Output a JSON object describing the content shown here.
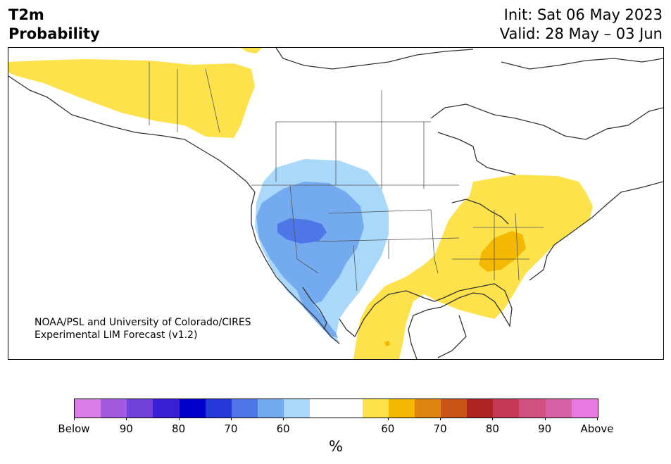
{
  "header": {
    "variable": "T2m",
    "product": "Probability",
    "init": "Init: Sat 06 May 2023",
    "valid": "Valid: 28 May – 03 Jun"
  },
  "map": {
    "credit_line1": "NOAA/PSL and University of Colorado/CIRES",
    "credit_line2": "Experimental LIM Forecast (v1.2)",
    "colors": {
      "above_60": "#fde24b",
      "above_70": "#f4b800",
      "below_60": "#a9d8fa",
      "below_70": "#74aaf0",
      "below_80": "#4e76e6",
      "land": "#ffffff",
      "coast": "#333333"
    }
  },
  "colorbar": {
    "unit": "%",
    "segments": [
      "#d97ce6",
      "#a45ae0",
      "#7040d8",
      "#3a1fd6",
      "#0000cc",
      "#2538d8",
      "#4e76e6",
      "#74aaf0",
      "#a9d8fa",
      "#ffffff",
      "#ffffff",
      "#fde24b",
      "#f4b800",
      "#de8410",
      "#c85418",
      "#b02424",
      "#c43a55",
      "#d05080",
      "#d862a8",
      "#e879e0"
    ],
    "ticks": [
      "Below",
      "90",
      "80",
      "70",
      "60",
      "60",
      "70",
      "80",
      "90",
      "Above"
    ]
  }
}
